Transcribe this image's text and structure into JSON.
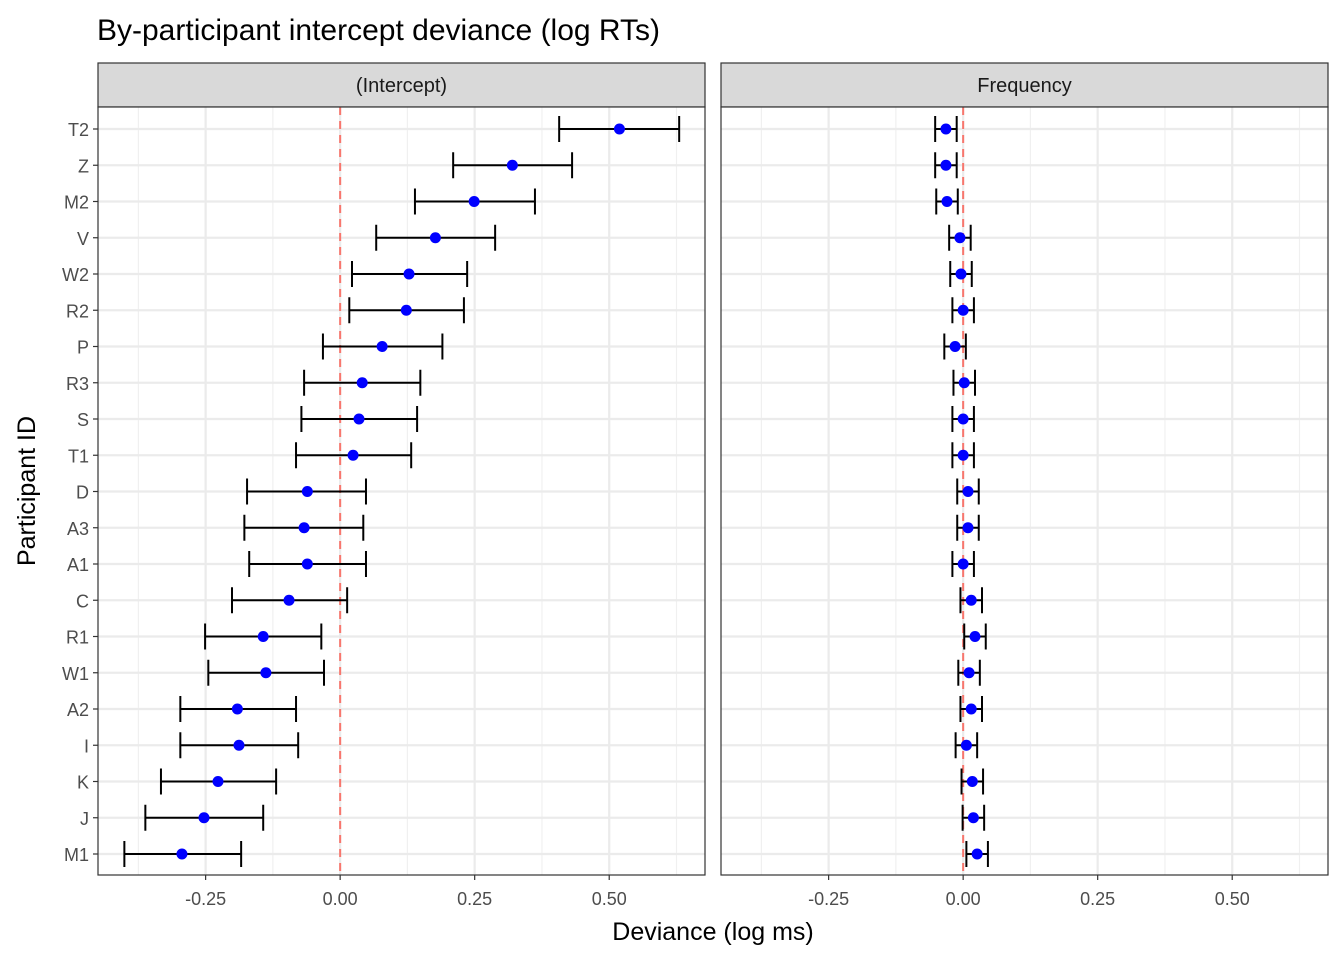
{
  "chart_data": {
    "type": "scatter",
    "title": "By-participant intercept deviance (log RTs)",
    "xlabel": "Deviance (log ms)",
    "ylabel": "Participant ID",
    "xlim": [
      -0.45,
      0.678
    ],
    "xticks": [
      -0.25,
      0.0,
      0.25,
      0.5
    ],
    "xtick_labels": [
      "-0.25",
      "0.00",
      "0.25",
      "0.50"
    ],
    "reference_line": {
      "x": 0,
      "color": "#f8766d",
      "style": "dashed"
    },
    "grid": true,
    "point_color": "#0000ff",
    "errorbar_color": "#000000",
    "categories": [
      "T2",
      "Z",
      "M2",
      "V",
      "W2",
      "R2",
      "P",
      "R3",
      "S",
      "T1",
      "D",
      "A3",
      "A1",
      "C",
      "R1",
      "W1",
      "A2",
      "I",
      "K",
      "J",
      "M1"
    ],
    "panels": [
      {
        "strip": "(Intercept)",
        "values": [
          0.519,
          0.32,
          0.249,
          0.177,
          0.128,
          0.123,
          0.078,
          0.041,
          0.035,
          0.024,
          -0.061,
          -0.067,
          -0.061,
          -0.095,
          -0.143,
          -0.138,
          -0.191,
          -0.188,
          -0.227,
          -0.253,
          -0.294
        ],
        "lower": [
          0.407,
          0.21,
          0.139,
          0.067,
          0.022,
          0.017,
          -0.032,
          -0.067,
          -0.072,
          -0.082,
          -0.173,
          -0.178,
          -0.169,
          -0.201,
          -0.251,
          -0.245,
          -0.297,
          -0.297,
          -0.333,
          -0.362,
          -0.401
        ],
        "upper": [
          0.63,
          0.431,
          0.362,
          0.288,
          0.236,
          0.23,
          0.19,
          0.149,
          0.143,
          0.132,
          0.048,
          0.043,
          0.048,
          0.013,
          -0.035,
          -0.03,
          -0.082,
          -0.078,
          -0.119,
          -0.143,
          -0.184
        ]
      },
      {
        "strip": "Frequency",
        "values": [
          -0.032,
          -0.032,
          -0.03,
          -0.006,
          -0.004,
          0.0,
          -0.015,
          0.002,
          0.0,
          0.0,
          0.009,
          0.009,
          0.0,
          0.015,
          0.022,
          0.011,
          0.015,
          0.006,
          0.017,
          0.019,
          0.026
        ],
        "lower": [
          -0.052,
          -0.052,
          -0.05,
          -0.026,
          -0.024,
          -0.02,
          -0.035,
          -0.018,
          -0.02,
          -0.02,
          -0.011,
          -0.011,
          -0.02,
          -0.005,
          0.002,
          -0.009,
          -0.005,
          -0.014,
          -0.003,
          -0.001,
          0.006
        ],
        "upper": [
          -0.012,
          -0.012,
          -0.01,
          0.014,
          0.016,
          0.02,
          0.005,
          0.022,
          0.02,
          0.02,
          0.029,
          0.029,
          0.02,
          0.035,
          0.042,
          0.031,
          0.035,
          0.026,
          0.037,
          0.039,
          0.046
        ]
      }
    ]
  }
}
